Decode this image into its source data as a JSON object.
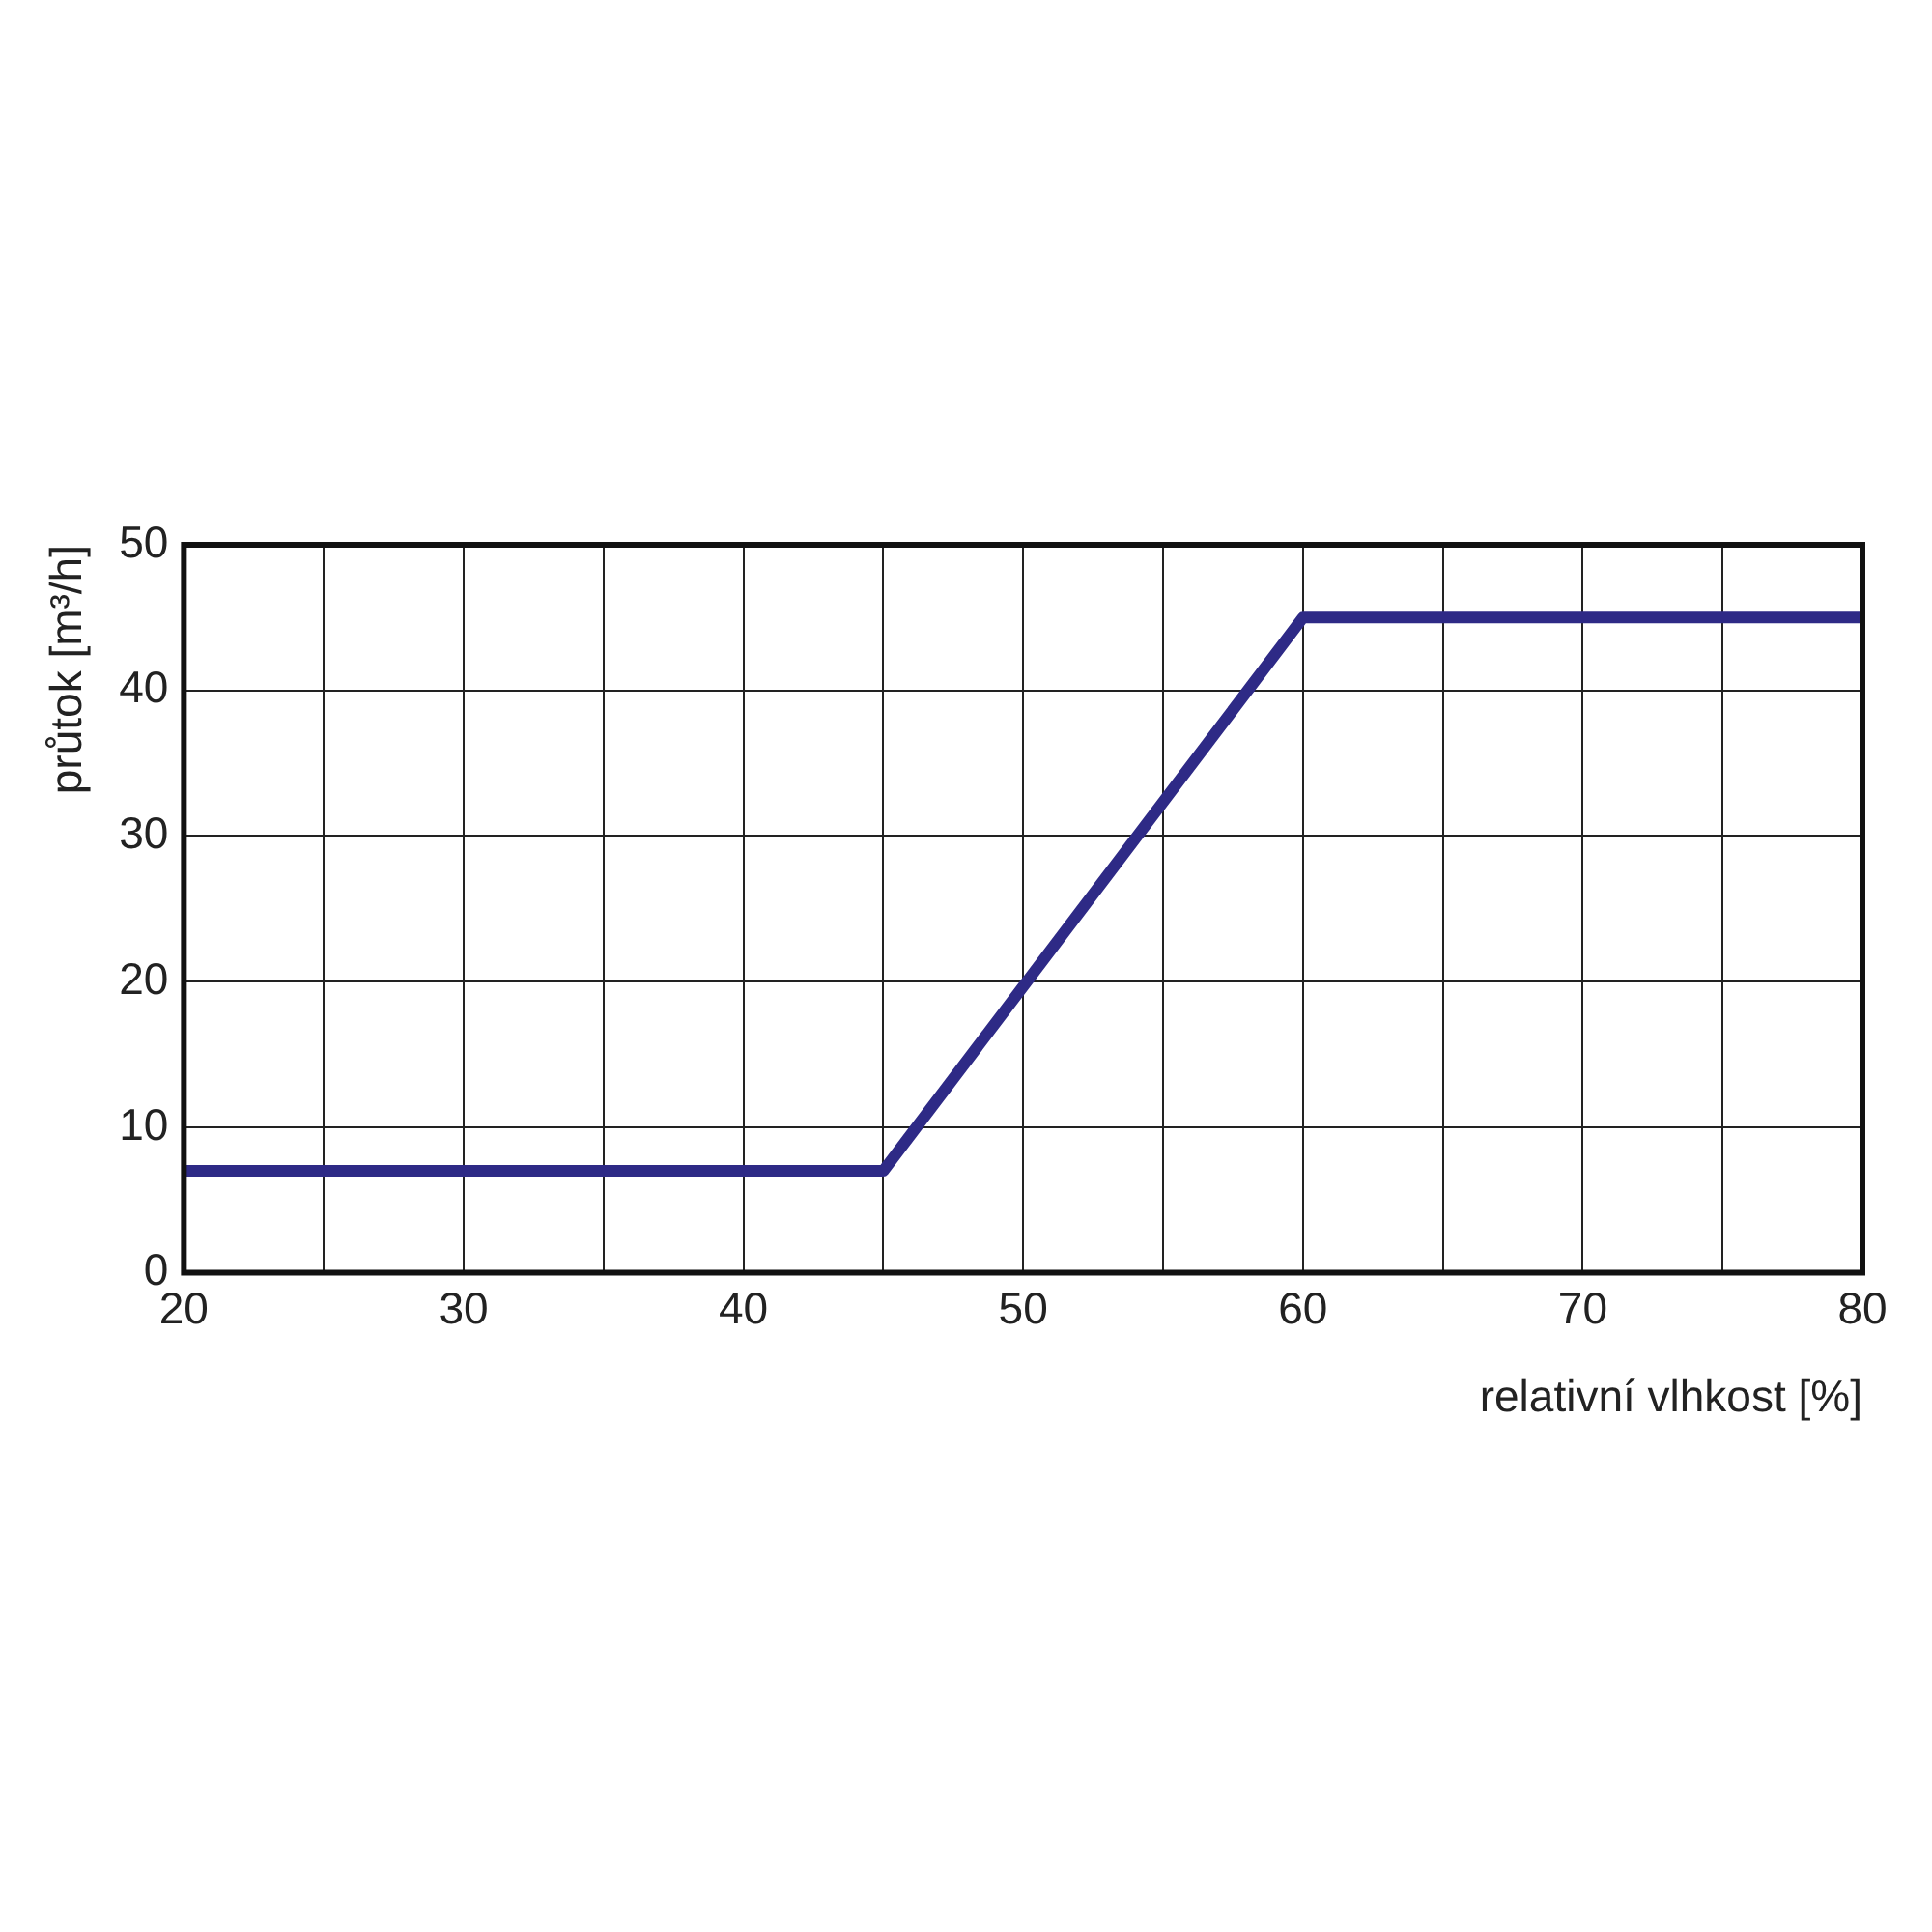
{
  "chart_data": {
    "type": "line",
    "xlabel": "relativní vlhkost [%]",
    "ylabel": "průtok [m³/h]",
    "series": [
      {
        "color": "#2e2a86",
        "x": [
          20,
          45,
          60,
          80
        ],
        "values": [
          7,
          7,
          45,
          45
        ]
      }
    ],
    "xlim": [
      20,
      80
    ],
    "xticks": [
      20,
      {
        "value": 25,
        "label": null
      },
      30,
      {
        "value": 35,
        "label": null
      },
      40,
      {
        "value": 45,
        "label": null
      },
      50,
      {
        "value": 55,
        "label": null
      },
      60,
      {
        "value": 65,
        "label": null
      },
      70,
      {
        "value": 75,
        "label": null
      },
      80
    ],
    "ylim": [
      0,
      50
    ],
    "yticks": [
      0,
      10,
      20,
      30,
      40,
      50
    ],
    "grid": true,
    "legend": false,
    "marker": "none",
    "line_style": "solid"
  }
}
